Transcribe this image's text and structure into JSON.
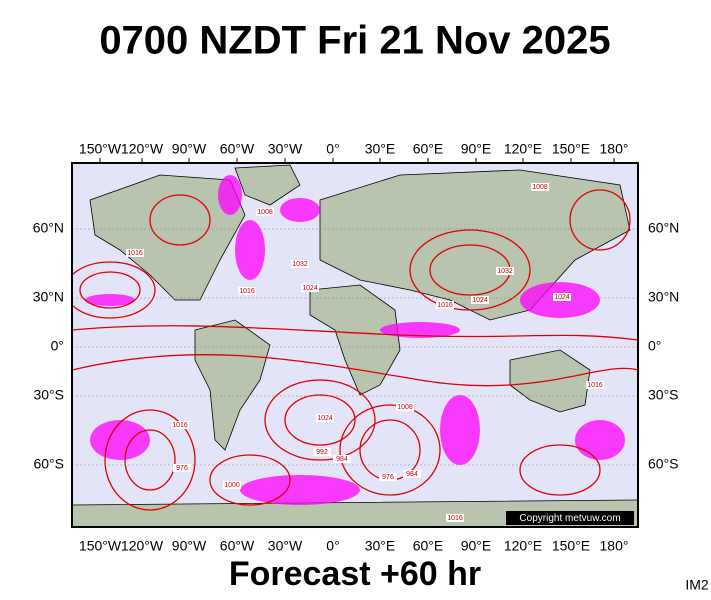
{
  "title": "0700 NZDT Fri 21 Nov 2025",
  "lon_labels": [
    "150°W",
    "120°W",
    "90°W",
    "60°W",
    "30°W",
    "0°",
    "30°E",
    "60°E",
    "90°E",
    "120°E",
    "150°E",
    "180°"
  ],
  "lat_labels": [
    "60°N",
    "30°N",
    "0°",
    "30°S",
    "60°S"
  ],
  "footer": "Forecast +60 hr",
  "corner": "IM2",
  "copyright": "Copyright metvuw.com",
  "isobar_labels": [
    "1016",
    "1032",
    "1024",
    "1016",
    "1008",
    "1024",
    "1032",
    "1016",
    "1024",
    "1008",
    "1016",
    "1024",
    "1008",
    "1016",
    "976",
    "992",
    "984",
    "976",
    "984",
    "1000",
    "1016"
  ]
}
